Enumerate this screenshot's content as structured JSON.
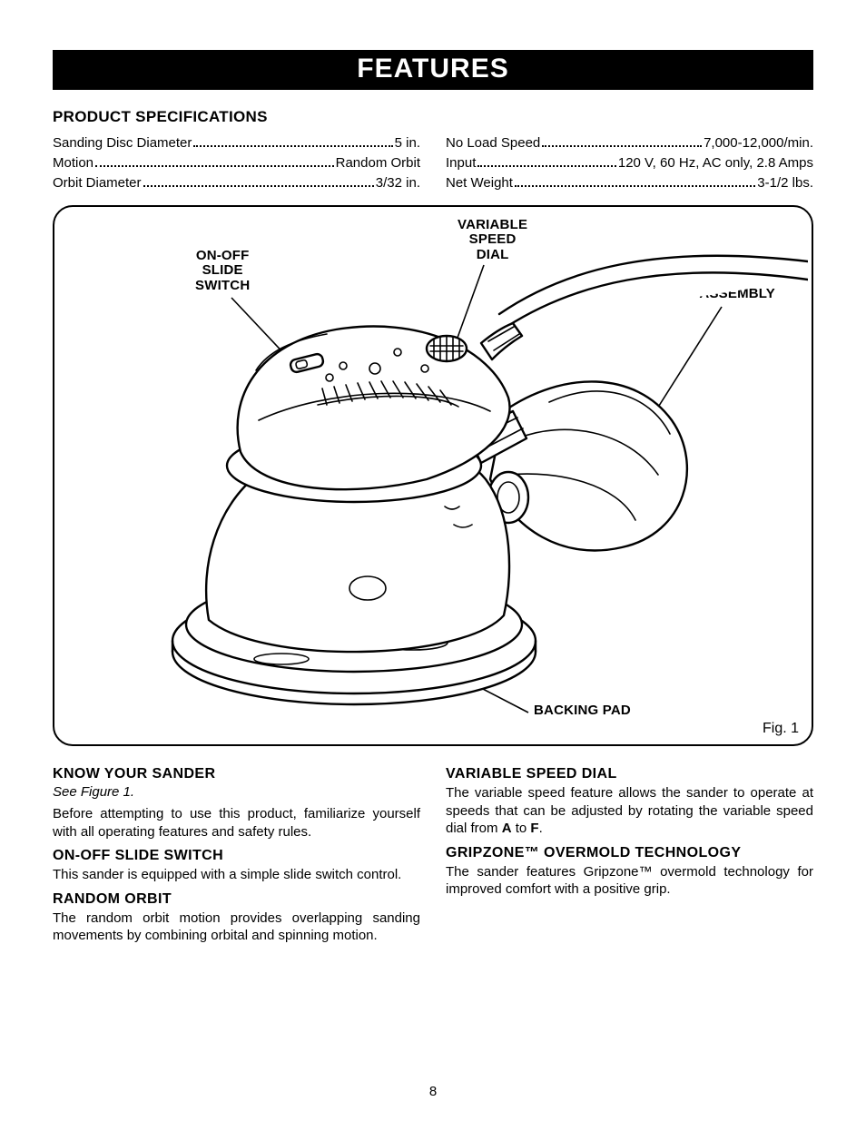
{
  "banner": "FEATURES",
  "specs": {
    "heading": "PRODUCT SPECIFICATIONS",
    "left": [
      {
        "label": "Sanding Disc Diameter",
        "value": "5 in."
      },
      {
        "label": "Motion",
        "value": "Random Orbit"
      },
      {
        "label": "Orbit Diameter",
        "value": "3/32 in."
      }
    ],
    "right": [
      {
        "label": "No Load Speed",
        "value": "7,000-12,000/min."
      },
      {
        "label": "Input",
        "value": "120 V, 60 Hz, AC only, 2.8 Amps"
      },
      {
        "label": "Net Weight",
        "value": "3-1/2 lbs."
      }
    ]
  },
  "figure": {
    "callouts": {
      "switch": "ON-OFF\nSLIDE\nSWITCH",
      "dial": "VARIABLE\nSPEED\nDIAL",
      "dustbag": "DUST BAG\nASSEMBLY",
      "pad": "BACKING PAD"
    },
    "label": "Fig. 1",
    "colors": {
      "stroke": "#000000",
      "fill": "#ffffff",
      "bg": "#ffffff"
    }
  },
  "body": {
    "left": [
      {
        "heading": "KNOW YOUR SANDER",
        "seeFig": "See Figure 1.",
        "text": "Before attempting to use this product, familiarize yourself with all operating features and safety rules."
      },
      {
        "heading": "ON-OFF SLIDE SWITCH",
        "text": "This sander is equipped with a simple slide switch control."
      },
      {
        "heading": "RANDOM ORBIT",
        "text": "The random orbit motion provides overlapping sanding movements by combining orbital and spinning motion."
      }
    ],
    "right": [
      {
        "heading": "VARIABLE SPEED DIAL",
        "textParts": [
          "The variable speed feature allows the sander to operate at speeds that can be adjusted by rotating the variable speed dial from ",
          " to ",
          "."
        ],
        "bold": [
          "A",
          "F"
        ]
      },
      {
        "heading": "GRIPZONE™ OVERMOLD TECHNOLOGY",
        "textParts": [
          "The sander features Gripzone™ overmold technology for improved comfort with a positive grip."
        ]
      }
    ]
  },
  "pageNumber": "8"
}
